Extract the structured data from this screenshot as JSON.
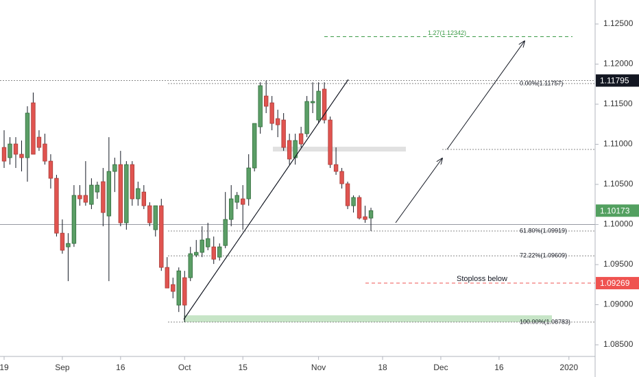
{
  "chart_data": {
    "type": "candlestick",
    "categories": [
      "19",
      null,
      null,
      null,
      null,
      null,
      null,
      null,
      null,
      null,
      "Sep",
      null,
      null,
      null,
      null,
      null,
      null,
      null,
      null,
      null,
      "16",
      null,
      null,
      null,
      null,
      null,
      null,
      null,
      null,
      null,
      null,
      "Oct",
      null,
      null,
      null,
      null,
      null,
      null,
      null,
      null,
      null,
      "15",
      null,
      null,
      null,
      null,
      null,
      null,
      null,
      null,
      null,
      null,
      null,
      null,
      "Nov",
      null,
      null,
      null,
      null,
      null,
      null,
      null,
      null,
      null,
      null,
      "18",
      null,
      null,
      null,
      null,
      null,
      null,
      null,
      null,
      null,
      "Dec",
      null,
      null,
      null,
      null,
      null,
      null,
      null,
      null,
      null,
      "16",
      null,
      null,
      null,
      null,
      null,
      null,
      null,
      null,
      null,
      null,
      null,
      "2020",
      null,
      null,
      null,
      null
    ],
    "open": [
      1.10961,
      1.10833,
      1.11004,
      1.10876,
      1.10833,
      1.11517,
      1.11089,
      1.11004,
      1.1079,
      1.10576,
      1.09892,
      1.09721,
      1.09764,
      1.10363,
      1.10363,
      1.10251,
      1.10405,
      1.10534,
      1.10106,
      1.10662,
      1.10747,
      1.10021,
      1.10747,
      1.1032,
      1.10405,
      1.10234,
      1.09935,
      1.10234,
      1.09465,
      1.09251,
      1.08995,
      1.09337,
      1.09337,
      1.09619,
      1.09653,
      1.09721,
      1.09721,
      1.09593,
      1.09738,
      1.10063,
      1.10277,
      1.1032,
      1.1032,
      1.10705,
      1.11218,
      1.11602,
      1.11517,
      1.1132,
      1.11303,
      1.11047,
      1.10833,
      1.11132,
      1.11132,
      1.11517,
      1.11303,
      1.11688,
      1.11303,
      1.10747,
      1.10662,
      1.10508,
      1.10234,
      1.10337,
      1.10097,
      1.1008,
      null,
      null,
      null,
      null,
      null,
      null,
      null,
      null,
      null,
      null,
      null,
      null,
      null,
      null,
      null,
      null,
      null,
      null,
      null,
      null,
      null,
      null,
      null,
      null,
      null,
      null,
      null,
      null,
      null,
      null,
      null,
      null,
      null,
      null,
      null,
      null,
      null,
      null
    ],
    "high": [
      1.11175,
      1.11089,
      1.11089,
      1.11047,
      1.11474,
      1.11645,
      1.11175,
      1.11132,
      1.10876,
      1.10619,
      1.10063,
      1.09892,
      1.10491,
      1.10491,
      1.1079,
      1.10576,
      1.10534,
      1.10705,
      1.11089,
      1.10833,
      1.10918,
      1.1079,
      1.1079,
      1.10534,
      1.10491,
      1.10277,
      1.10234,
      1.1032,
      1.09593,
      1.09337,
      1.09465,
      1.09422,
      1.09721,
      1.09807,
      1.09978,
      1.10021,
      1.0985,
      1.09764,
      1.10405,
      1.10491,
      1.10405,
      1.10491,
      1.10876,
      1.1126,
      1.11773,
      1.11795,
      1.11602,
      1.11431,
      1.11389,
      1.11132,
      1.11132,
      1.11218,
      1.11602,
      1.11773,
      1.11773,
      1.11773,
      1.11346,
      1.10961,
      1.10705,
      1.10534,
      1.10363,
      1.10363,
      1.10234,
      1.10209,
      null,
      null,
      null,
      null,
      null,
      null,
      null,
      null,
      null,
      null,
      null,
      null,
      null,
      null,
      null,
      null,
      null,
      null,
      null,
      null,
      null,
      null,
      null,
      null,
      null,
      null,
      null,
      null,
      null,
      null,
      null,
      null,
      null,
      null,
      null,
      null,
      null,
      null
    ],
    "low": [
      1.10705,
      1.10747,
      1.10705,
      1.10662,
      1.10534,
      1.10876,
      1.10918,
      1.10747,
      1.10448,
      1.0985,
      1.09636,
      1.09294,
      1.09721,
      1.10234,
      1.10234,
      1.10192,
      1.1032,
      1.09978,
      1.09294,
      1.10405,
      1.09978,
      1.09935,
      1.10234,
      1.10234,
      1.10192,
      1.09978,
      1.0985,
      1.09422,
      1.09208,
      1.0908,
      1.08909,
      1.08783,
      1.09294,
      1.09593,
      1.09593,
      1.09679,
      1.09508,
      1.0955,
      1.09704,
      1.09978,
      1.10192,
      1.09935,
      1.10234,
      1.10662,
      1.11132,
      1.11389,
      1.11175,
      1.11089,
      1.10918,
      1.10747,
      1.10747,
      1.10961,
      1.11089,
      1.11389,
      1.1126,
      1.1126,
      1.10705,
      1.10619,
      1.10448,
      1.10192,
      1.10149,
      1.10063,
      1.10021,
      1.09918,
      null,
      null,
      null,
      null,
      null,
      null,
      null,
      null,
      null,
      null,
      null,
      null,
      null,
      null,
      null,
      null,
      null,
      null,
      null,
      null,
      null,
      null,
      null,
      null,
      null,
      null,
      null,
      null,
      null,
      null,
      null,
      null,
      null,
      null,
      null,
      null,
      null,
      null
    ],
    "close": [
      1.1079,
      1.11004,
      1.10876,
      1.10833,
      1.11389,
      1.10876,
      1.10961,
      1.1079,
      1.10576,
      1.09892,
      1.09679,
      1.09764,
      1.10363,
      1.1032,
      1.10277,
      1.10491,
      1.10491,
      1.10149,
      1.10662,
      1.10747,
      1.10021,
      1.10747,
      1.1032,
      1.10448,
      1.10234,
      1.10021,
      1.10234,
      1.09465,
      1.09208,
      1.09166,
      1.09422,
      1.08995,
      1.09636,
      1.09653,
      1.09807,
      1.09824,
      1.09567,
      1.09721,
      1.10063,
      1.1032,
      1.10363,
      1.10251,
      1.10705,
      1.1126,
      1.11731,
      1.11474,
      1.1126,
      1.11243,
      1.10961,
      1.10816,
      1.11047,
      1.11004,
      1.11534,
      1.11534,
      1.11662,
      1.11303,
      1.10747,
      1.10662,
      1.10508,
      1.10234,
      1.10337,
      1.1008,
      1.10063,
      1.10173,
      null,
      null,
      null,
      null,
      null,
      null,
      null,
      null,
      null,
      null,
      null,
      null,
      null,
      null,
      null,
      null,
      null,
      null,
      null,
      null,
      null,
      null,
      null,
      null,
      null,
      null,
      null,
      null,
      null,
      null,
      null,
      null,
      null,
      null,
      null,
      null,
      null,
      null
    ],
    "up_color": "#5b9e66",
    "down_color": "#e05450",
    "ylim": [
      1.08355,
      1.12799
    ],
    "yticks": [
      {
        "value": 1.085,
        "label": "1.08500"
      },
      {
        "value": 1.09,
        "label": "1.09000"
      },
      {
        "value": 1.095,
        "label": "1.09500"
      },
      {
        "value": 1.1,
        "label": "1.10000"
      },
      {
        "value": 1.105,
        "label": "1.10500"
      },
      {
        "value": 1.11,
        "label": "1.11000"
      },
      {
        "value": 1.115,
        "label": "1.11500"
      },
      {
        "value": 1.12,
        "label": "1.12000"
      },
      {
        "value": 1.125,
        "label": "1.12500"
      }
    ],
    "grid": false,
    "fib_levels": [
      {
        "label": "0.00%(1.11757)",
        "value": 1.11757
      },
      {
        "label": "61.80%(1.09919)",
        "value": 1.09919
      },
      {
        "label": "72.22%(1.09609)",
        "value": 1.09609
      },
      {
        "label": "100.00%(1.08783)",
        "value": 1.08783
      }
    ],
    "extension": {
      "label": "1.27(1.12342)",
      "value": 1.12342,
      "color": "#3a9a45"
    },
    "high_line": {
      "value": 1.11795,
      "color": "#131722"
    },
    "last_price": {
      "value": 1.10173,
      "color": "#53a060"
    },
    "reference_line": 1.1,
    "stoploss": {
      "text": "Stoploss below",
      "value": 1.09269,
      "color": "#ef5350"
    }
  }
}
